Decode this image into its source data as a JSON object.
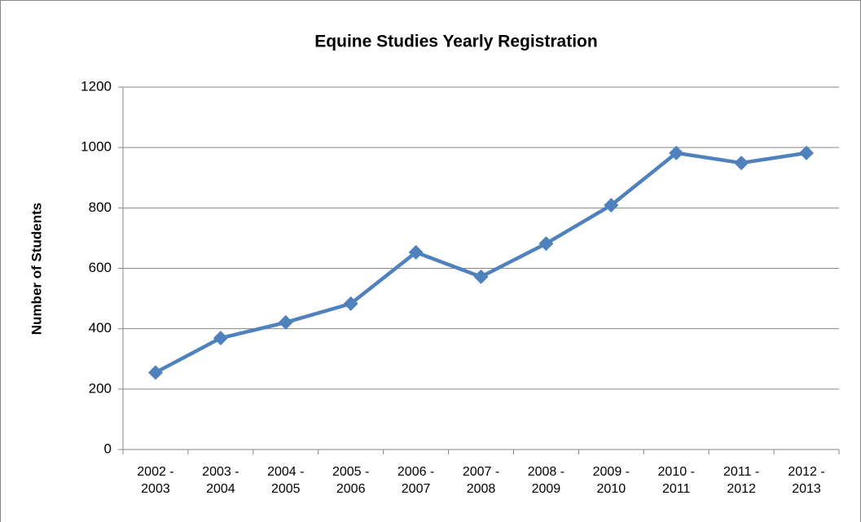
{
  "chart_data": {
    "type": "line",
    "title": "Equine Studies Yearly Registration",
    "y_label": "Number of Students",
    "categories": [
      "2002 - 2003",
      "2003 - 2004",
      "2004 - 2005",
      "2005 - 2006",
      "2006 - 2007",
      "2007 - 2008",
      "2008 - 2009",
      "2009 - 2010",
      "2010 - 2011",
      "2011 - 2012",
      "2012 - 2013"
    ],
    "series": [
      {
        "name": "Number of Students",
        "color": "#4f81bd",
        "values": [
          255,
          369,
          421,
          483,
          653,
          572,
          682,
          809,
          982,
          949,
          982
        ]
      }
    ],
    "ylim": [
      0,
      1200
    ],
    "yticks": [
      0,
      200,
      400,
      600,
      800,
      1000,
      1200
    ],
    "grid": true
  }
}
